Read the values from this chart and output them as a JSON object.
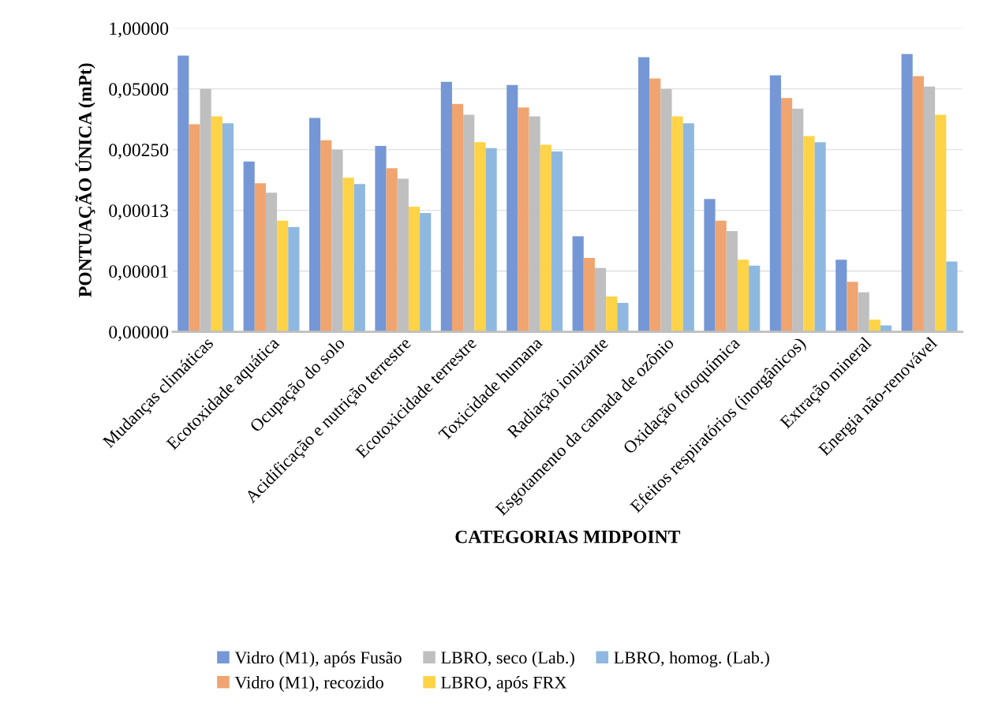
{
  "chart_data": {
    "type": "bar",
    "xlabel": "CATEGORIAS MIDPOINT",
    "ylabel": "PONTUAÇÃO ÚNICA (mPt)",
    "log": "y",
    "grid": "y",
    "legend": "bottom",
    "categories": [
      "Mudanças climáticas",
      "Ecotoxidade aquática",
      "Ocupação do solo",
      "Acidificação e nutrição terrestre",
      "Ecotoxicidade terrestre",
      "Toxicidade humana",
      "Radiação ionizante",
      "Esgotamento da camada de ozônio",
      "Oxidação fotoquímica",
      "Efeitos respiratórios (inorgânicos)",
      "Extração mineral",
      "Energia não-renovável"
    ],
    "ylim": [
      3.125e-07,
      1
    ],
    "yticks": [
      {
        "value": 3.125e-07,
        "label": "0,00000"
      },
      {
        "value": 6.25e-06,
        "label": "0,00001"
      },
      {
        "value": 0.000125,
        "label": "0,00013"
      },
      {
        "value": 0.0025,
        "label": "0,00250"
      },
      {
        "value": 0.05,
        "label": "0,05000"
      },
      {
        "value": 1,
        "label": "1,00000"
      }
    ],
    "series": [
      {
        "name": "Vidro (M1), após Fusão",
        "color": "#7597d5",
        "values": [
          0.26,
          0.0014,
          0.012,
          0.003,
          0.071,
          0.061,
          3.5e-05,
          0.24,
          0.00022,
          0.098,
          1.1e-05,
          0.28
        ]
      },
      {
        "name": "Vidro (M1), recozido",
        "color": "#f0a470",
        "values": [
          0.0088,
          0.00048,
          0.004,
          0.001,
          0.024,
          0.02,
          1.2e-05,
          0.084,
          7.5e-05,
          0.032,
          3.7e-06,
          0.094
        ]
      },
      {
        "name": "LBRO, seco (Lab.)",
        "color": "#bfbfbf",
        "values": [
          0.05,
          0.0003,
          0.0025,
          0.0006,
          0.014,
          0.013,
          7.3e-06,
          0.05,
          4.5e-05,
          0.019,
          2.2e-06,
          0.056
        ]
      },
      {
        "name": "LBRO, após FRX",
        "color": "#ffd347",
        "values": [
          0.013,
          7.5e-05,
          0.00063,
          0.00015,
          0.0036,
          0.0032,
          1.8e-06,
          0.013,
          1.1e-05,
          0.0049,
          5.7e-07,
          0.014
        ]
      },
      {
        "name": "LBRO, homog. (Lab.)",
        "color": "#8fb8e0",
        "values": [
          0.0092,
          5.5e-05,
          0.00046,
          0.00011,
          0.0027,
          0.0023,
          1.3e-06,
          0.0092,
          8.2e-06,
          0.0036,
          4.3e-07,
          1e-05
        ]
      }
    ]
  }
}
